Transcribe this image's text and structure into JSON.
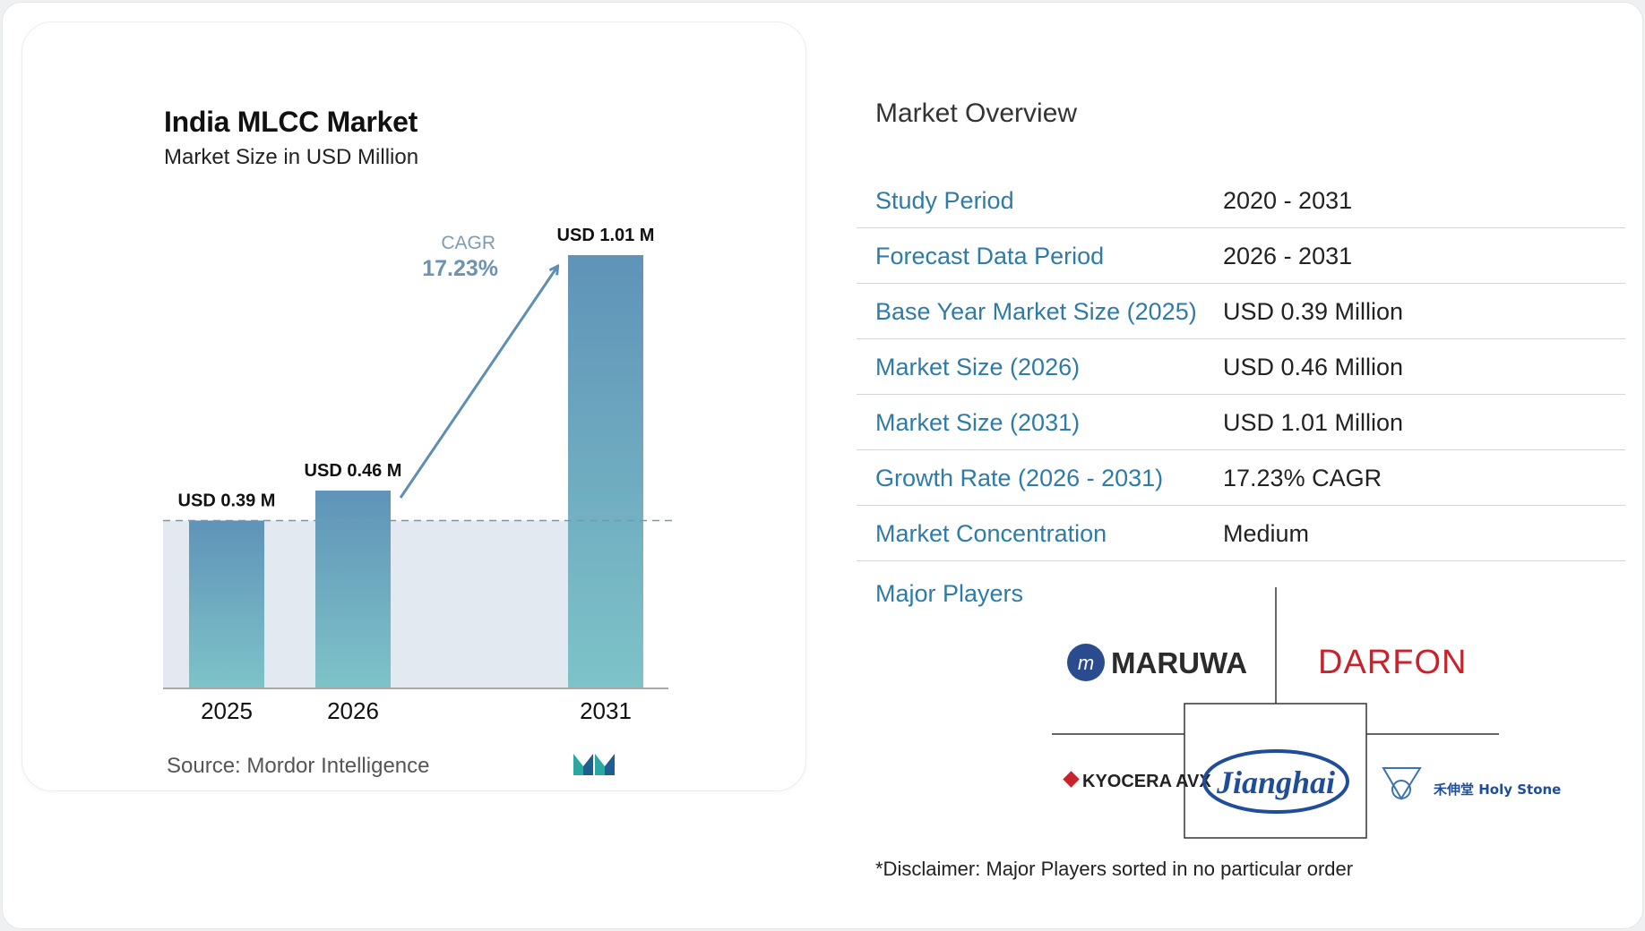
{
  "chart_data": {
    "type": "bar",
    "title": "India MLCC Market",
    "subtitle": "Market Size in USD Million",
    "categories": [
      "2025",
      "2026",
      "2031"
    ],
    "values": [
      0.39,
      0.46,
      1.01
    ],
    "data_labels": [
      "USD 0.39 M",
      "USD 0.46 M",
      "USD 1.01 M"
    ],
    "annotation": {
      "label": "CAGR",
      "value": "17.23%"
    },
    "ylim": [
      0,
      1.01
    ],
    "grid": false,
    "colors": {
      "bar_top": "#5f93b8",
      "bar_bottom": "#7ec3c8",
      "band": "#e2e9f1",
      "arrow": "#5e8fb3"
    }
  },
  "source": "Source:  Mordor Intelligence",
  "overview": {
    "title": "Market Overview",
    "rows": [
      {
        "label": "Study Period",
        "value": "2020 - 2031"
      },
      {
        "label": "Forecast Data Period",
        "value": "2026 - 2031"
      },
      {
        "label": "Base Year Market Size (2025)",
        "value": "USD 0.39 Million"
      },
      {
        "label": "Market Size (2026)",
        "value": "USD 0.46 Million"
      },
      {
        "label": "Market Size (2031)",
        "value": "USD 1.01 Million"
      },
      {
        "label": "Growth Rate (2026 - 2031)",
        "value": "17.23% CAGR"
      },
      {
        "label": "Market Concentration",
        "value": "Medium"
      }
    ],
    "players_label": "Major Players",
    "players": [
      "MARUWA",
      "DARFON",
      "KYOCERA AVX",
      "Jianghai",
      "禾伸堂 Holy Stone"
    ],
    "disclaimer": "*Disclaimer: Major Players sorted in no particular order"
  },
  "colors": {
    "accent": "#2f7ba7",
    "darfon_red": "#c8232c",
    "maruwa_blue": "#2a4b8d",
    "jianghai_blue": "#1f4d9a"
  }
}
